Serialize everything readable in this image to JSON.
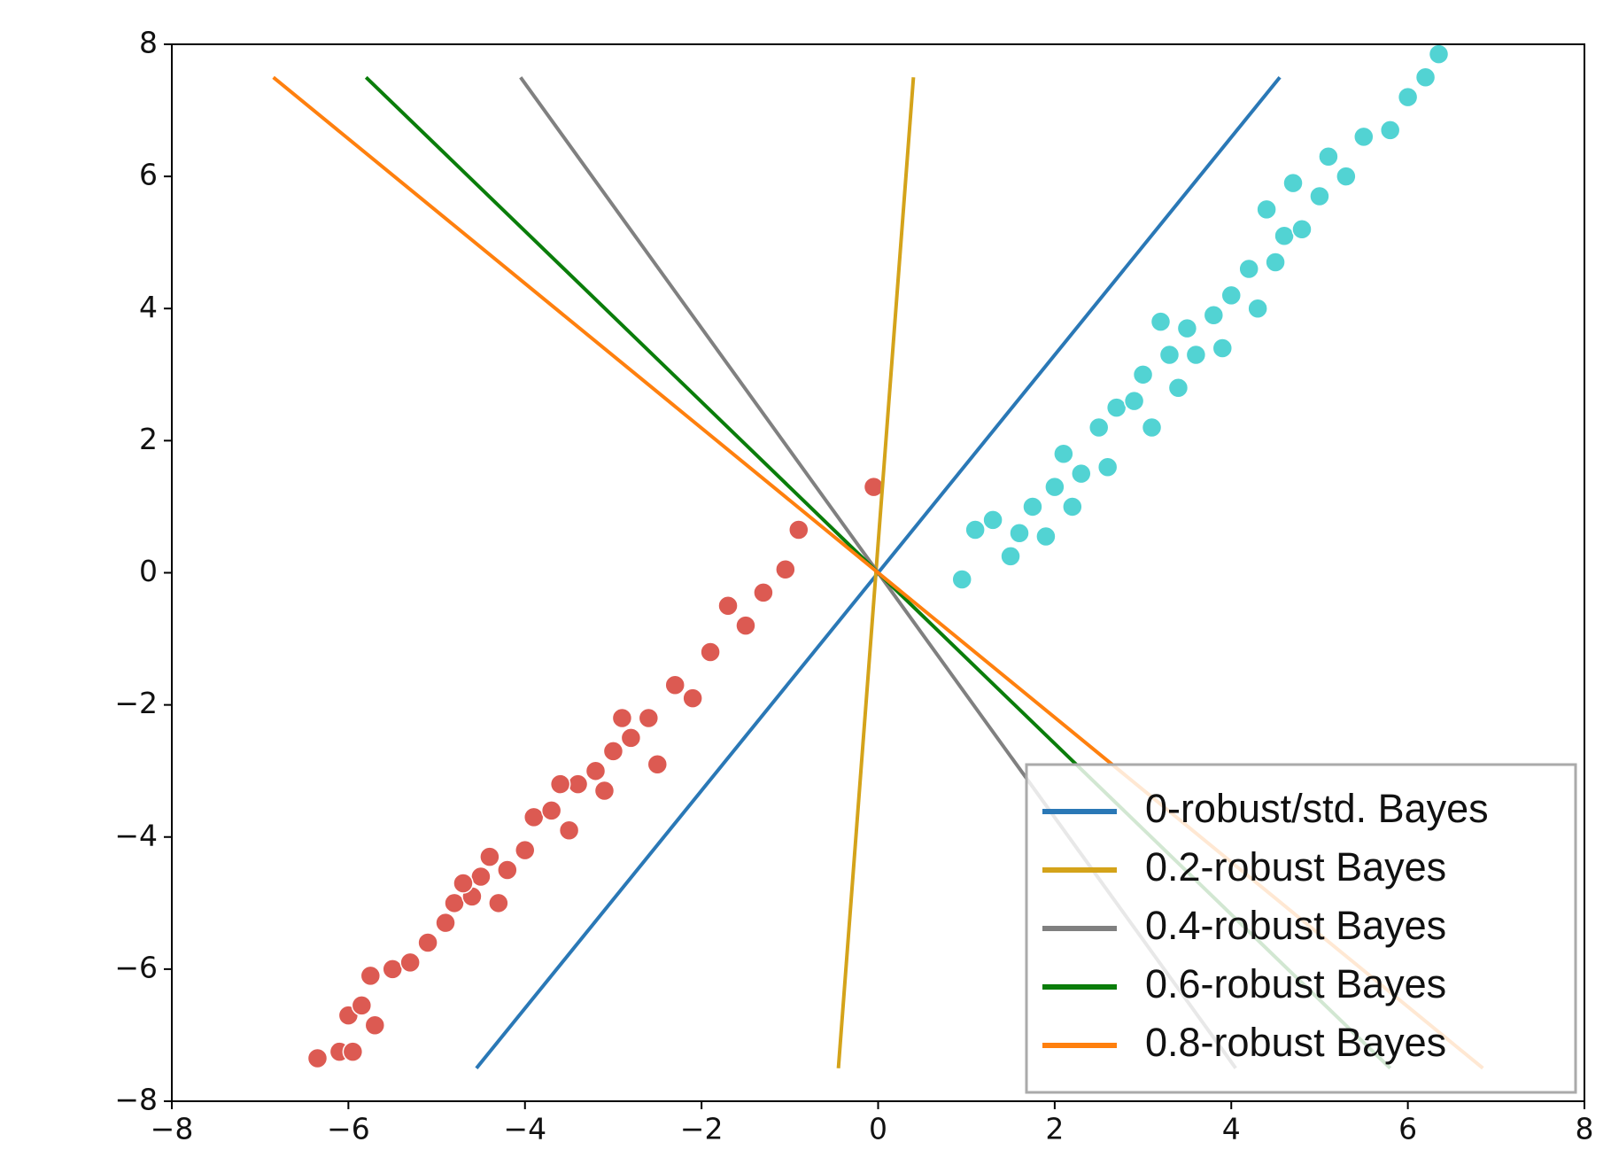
{
  "chart_data": {
    "type": "scatter",
    "xlim": [
      -8,
      8
    ],
    "ylim": [
      -8,
      8
    ],
    "xticks": [
      {
        "value": -8,
        "label": "−8"
      },
      {
        "value": -6,
        "label": "−6"
      },
      {
        "value": -4,
        "label": "−4"
      },
      {
        "value": -2,
        "label": "−2"
      },
      0,
      2,
      4,
      6,
      8
    ],
    "yticks": [
      {
        "value": -8,
        "label": "−8"
      },
      {
        "value": -6,
        "label": "−6"
      },
      {
        "value": -4,
        "label": "−4"
      },
      {
        "value": -2,
        "label": "−2"
      },
      0,
      2,
      4,
      6,
      8
    ],
    "legend": "lower right",
    "series": [
      {
        "type": "scatter",
        "color": "#dc5a52",
        "x": [
          -6.35,
          -6.1,
          -5.95,
          -6.0,
          -5.85,
          -5.7,
          -5.75,
          -5.5,
          -5.3,
          -5.1,
          -4.9,
          -4.8,
          -4.6,
          -4.5,
          -4.4,
          -4.2,
          -4.0,
          -3.9,
          -3.7,
          -3.5,
          -3.4,
          -3.2,
          -3.0,
          -3.1,
          -2.8,
          -2.6,
          -2.5,
          -2.3,
          -2.1,
          -1.9,
          -1.7,
          -1.5,
          -1.3,
          -1.05,
          -0.9,
          -0.05,
          -4.7,
          -3.6,
          -2.9,
          -4.3
        ],
        "values": [
          -7.35,
          -7.25,
          -7.25,
          -6.7,
          -6.55,
          -6.85,
          -6.1,
          -6.0,
          -5.9,
          -5.6,
          -5.3,
          -5.0,
          -4.9,
          -4.6,
          -4.3,
          -4.5,
          -4.2,
          -3.7,
          -3.6,
          -3.9,
          -3.2,
          -3.0,
          -2.7,
          -3.3,
          -2.5,
          -2.2,
          -2.9,
          -1.7,
          -1.9,
          -1.2,
          -0.5,
          -0.8,
          -0.3,
          0.05,
          0.65,
          1.3,
          -4.7,
          -3.2,
          -2.2,
          -5.0
        ]
      },
      {
        "type": "scatter",
        "color": "#52d3d3",
        "x": [
          0.95,
          1.1,
          1.3,
          1.5,
          1.6,
          1.9,
          1.75,
          2.0,
          2.1,
          2.3,
          2.5,
          2.6,
          2.7,
          2.9,
          3.0,
          3.1,
          3.3,
          3.5,
          3.4,
          3.6,
          3.8,
          3.9,
          4.0,
          4.2,
          4.3,
          4.5,
          4.6,
          4.8,
          4.7,
          5.0,
          5.1,
          5.3,
          5.5,
          5.8,
          6.0,
          6.2,
          6.35,
          2.2,
          3.2,
          4.4
        ],
        "values": [
          -0.1,
          0.65,
          0.8,
          0.25,
          0.6,
          0.55,
          1.0,
          1.3,
          1.8,
          1.5,
          2.2,
          1.6,
          2.5,
          2.6,
          3.0,
          2.2,
          3.3,
          3.7,
          2.8,
          3.3,
          3.9,
          3.4,
          4.2,
          4.6,
          4.0,
          4.7,
          5.1,
          5.2,
          5.9,
          5.7,
          6.3,
          6.0,
          6.6,
          6.7,
          7.2,
          7.5,
          7.85,
          1.0,
          3.8,
          5.5
        ]
      },
      {
        "type": "line",
        "name": "0-robust/std. Bayes",
        "color": "#2a78b6",
        "x": [
          -4.55,
          4.55
        ],
        "values": [
          -7.5,
          7.5
        ]
      },
      {
        "type": "line",
        "name": "0.2-robust Bayes",
        "color": "#d4a31a",
        "x": [
          -0.45,
          0.4
        ],
        "values": [
          -7.5,
          7.5
        ]
      },
      {
        "type": "line",
        "name": "0.4-robust Bayes",
        "color": "#808080",
        "x": [
          -4.05,
          4.05
        ],
        "values": [
          7.5,
          -7.5
        ]
      },
      {
        "type": "line",
        "name": "0.6-robust Bayes",
        "color": "#0a7d0a",
        "x": [
          -5.8,
          5.8
        ],
        "values": [
          7.5,
          -7.5
        ]
      },
      {
        "type": "line",
        "name": "0.8-robust Bayes",
        "color": "#ff800e",
        "x": [
          -6.85,
          6.85
        ],
        "values": [
          7.5,
          -7.5
        ]
      }
    ]
  }
}
